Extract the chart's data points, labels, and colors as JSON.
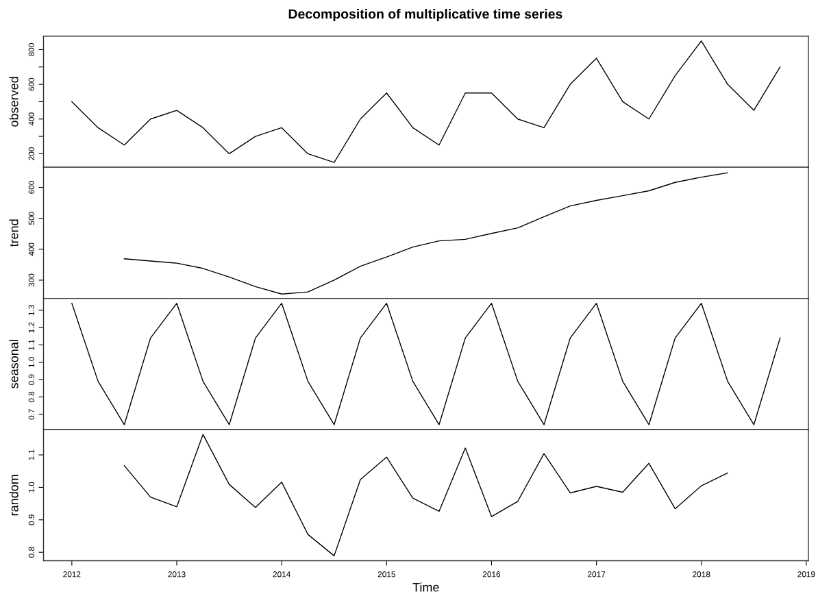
{
  "chart_data": [
    {
      "type": "line",
      "title": "Decomposition of multiplicative time series",
      "ylabel": "observed",
      "tick_labels": "y",
      "color": "#000000",
      "grid": false,
      "legend": false,
      "x": [
        2012,
        2012.25,
        2012.5,
        2012.75,
        2013,
        2013.25,
        2013.5,
        2013.75,
        2014,
        2014.25,
        2014.5,
        2014.75,
        2015,
        2015.25,
        2015.5,
        2015.75,
        2016,
        2016.25,
        2016.5,
        2016.75,
        2017,
        2017.25,
        2017.5,
        2017.75,
        2018,
        2018.25,
        2018.5,
        2018.75
      ],
      "values": [
        500,
        350,
        250,
        400,
        450,
        350,
        200,
        300,
        350,
        200,
        150,
        400,
        550,
        350,
        250,
        550,
        550,
        400,
        350,
        600,
        750,
        500,
        400,
        650,
        850,
        600,
        450,
        700
      ],
      "xlim": [
        2011.73,
        2019.02
      ],
      "ylim": [
        122,
        878
      ],
      "yticks": [
        200,
        {
          "value": 300,
          "label": null
        },
        400,
        {
          "value": 500,
          "label": null
        },
        600,
        {
          "value": 700,
          "label": null
        },
        800
      ]
    },
    {
      "type": "line",
      "ylabel": "trend",
      "tick_labels": "y",
      "color": "#000000",
      "grid": false,
      "legend": false,
      "x": [
        2012.5,
        2012.75,
        2013,
        2013.25,
        2013.5,
        2013.75,
        2014,
        2014.25,
        2014.5,
        2014.75,
        2015,
        2015.25,
        2015.5,
        2015.75,
        2016,
        2016.25,
        2016.5,
        2016.75,
        2017,
        2017.25,
        2017.5,
        2017.75,
        2018,
        2018.25
      ],
      "values": [
        369,
        362,
        355,
        338,
        310,
        279,
        255,
        262,
        300,
        345,
        375,
        407,
        427,
        432,
        451,
        469,
        505,
        540,
        558,
        573,
        589,
        616,
        633,
        647
      ],
      "xlim": [
        2011.73,
        2019.02
      ],
      "ylim": [
        241,
        665
      ],
      "yticks": [
        300,
        400,
        500,
        600
      ]
    },
    {
      "type": "line",
      "ylabel": "seasonal",
      "tick_labels": "y",
      "color": "#000000",
      "grid": false,
      "legend": false,
      "x": [
        2012,
        2012.25,
        2012.5,
        2012.75,
        2013,
        2013.25,
        2013.5,
        2013.75,
        2014,
        2014.25,
        2014.5,
        2014.75,
        2015,
        2015.25,
        2015.5,
        2015.75,
        2016,
        2016.25,
        2016.5,
        2016.75,
        2017,
        2017.25,
        2017.5,
        2017.75,
        2018,
        2018.25,
        2018.5,
        2018.75
      ],
      "values": [
        1.34,
        0.89,
        0.64,
        1.14,
        1.34,
        0.89,
        0.64,
        1.14,
        1.34,
        0.89,
        0.64,
        1.14,
        1.34,
        0.89,
        0.64,
        1.14,
        1.34,
        0.89,
        0.64,
        1.14,
        1.34,
        0.89,
        0.64,
        1.14,
        1.34,
        0.89,
        0.64,
        1.14
      ],
      "xlim": [
        2011.73,
        2019.02
      ],
      "ylim": [
        0.612,
        1.368
      ],
      "yticks": [
        0.7,
        0.8,
        0.9,
        {
          "value": 1.0,
          "label": "1.0"
        },
        1.1,
        1.2,
        1.3
      ]
    },
    {
      "type": "line",
      "ylabel": "random",
      "xlabel": "Time",
      "color": "#000000",
      "grid": false,
      "legend": false,
      "x": [
        2012.5,
        2012.75,
        2013,
        2013.25,
        2013.5,
        2013.75,
        2014,
        2014.25,
        2014.5,
        2014.75,
        2015,
        2015.25,
        2015.5,
        2015.75,
        2016,
        2016.25,
        2016.5,
        2016.75,
        2017,
        2017.25,
        2017.5,
        2017.75,
        2018,
        2018.25
      ],
      "values": [
        1.067,
        0.97,
        0.94,
        1.163,
        1.009,
        0.938,
        1.016,
        0.855,
        0.789,
        1.024,
        1.093,
        0.967,
        0.926,
        1.121,
        0.91,
        0.957,
        1.104,
        0.983,
        1.003,
        0.985,
        1.074,
        0.934,
        1.005,
        1.044
      ],
      "xlim": [
        2011.73,
        2019.02
      ],
      "ylim": [
        0.774,
        1.178
      ],
      "xticks": [
        2012,
        2013,
        2014,
        2015,
        2016,
        2017,
        2018,
        2019
      ],
      "yticks": [
        0.8,
        0.9,
        {
          "value": 1.0,
          "label": "1.0"
        },
        1.1
      ]
    }
  ]
}
